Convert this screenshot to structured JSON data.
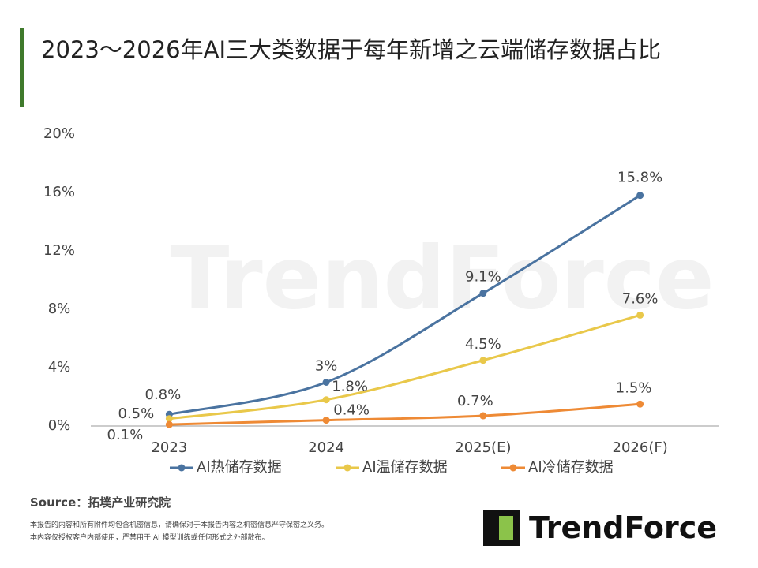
{
  "chart_data": {
    "type": "line",
    "title": "2023～2026年AI三大类数据于每年新增之云端储存数据占比",
    "categories": [
      "2023",
      "2024",
      "2025(E)",
      "2026(F)"
    ],
    "series": [
      {
        "name": "AI热储存数据",
        "color": "#4a73a0",
        "values": [
          0.8,
          3,
          9.1,
          15.8
        ],
        "value_labels": [
          "0.8%",
          "3%",
          "9.1%",
          "15.8%"
        ]
      },
      {
        "name": "AI温储存数据",
        "color": "#e9c84a",
        "values": [
          0.5,
          1.8,
          4.5,
          7.6
        ],
        "value_labels": [
          "0.5%",
          "1.8%",
          "4.5%",
          "7.6%"
        ]
      },
      {
        "name": "AI冷储存数据",
        "color": "#ee8a35",
        "values": [
          0.1,
          0.4,
          0.7,
          1.5
        ],
        "value_labels": [
          "0.1%",
          "0.4%",
          "0.7%",
          "1.5%"
        ]
      }
    ],
    "ylim": [
      0,
      20
    ],
    "yticks": [
      {
        "value": 0,
        "label": "0%"
      },
      {
        "value": 4,
        "label": "4%"
      },
      {
        "value": 8,
        "label": "8%"
      },
      {
        "value": 12,
        "label": "12%"
      },
      {
        "value": 16,
        "label": "16%"
      },
      {
        "value": 20,
        "label": "20%"
      }
    ],
    "legend": "bottom"
  },
  "source": "Source：拓墣产业研究院",
  "notes": [
    "本报告的内容和所有附件均包含机密信息，请确保对于本报告内容之机密信息严守保密之义务。",
    "本内容仅授权客户内部使用，严禁用于 AI 模型训练或任何形式之外部散布。"
  ],
  "watermark": "TrendForce",
  "logo": "TrendForce"
}
